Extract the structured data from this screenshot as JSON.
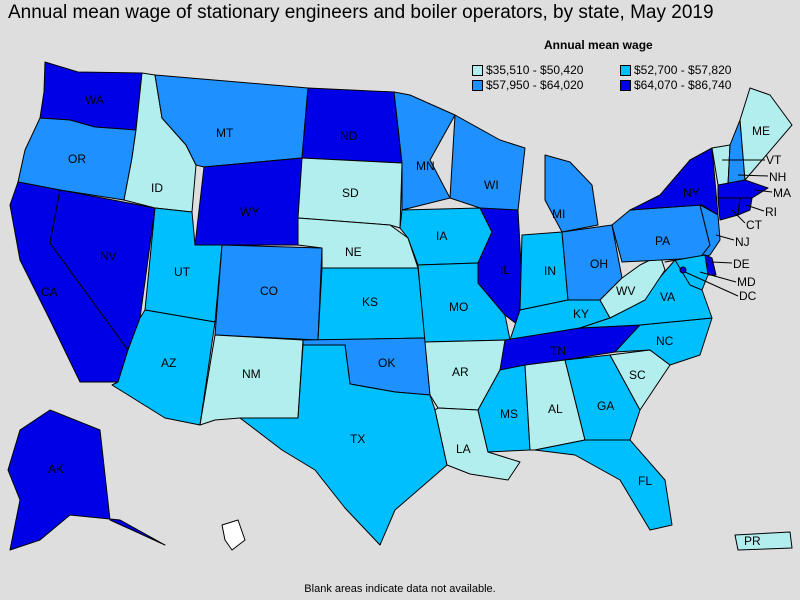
{
  "title": "Annual mean wage of stationary engineers and boiler operators, by state, May 2019",
  "legend": {
    "title": "Annual mean wage",
    "items": [
      {
        "label": "$35,510 - $50,420",
        "color": "#b3eeee"
      },
      {
        "label": "$52,700 - $57,820",
        "color": "#00bfff"
      },
      {
        "label": "$57,950 - $64,020",
        "color": "#1e90ff"
      },
      {
        "label": "$64,070 - $86,740",
        "color": "#0000e6"
      }
    ]
  },
  "colors": {
    "tier1": "#b3eeee",
    "tier2": "#00bfff",
    "tier3": "#1e90ff",
    "tier4": "#0000e6",
    "no_data": "#ffffff",
    "background": "#dedede"
  },
  "states": [
    {
      "abbr": "WA",
      "tier": 4
    },
    {
      "abbr": "OR",
      "tier": 3
    },
    {
      "abbr": "CA",
      "tier": 4
    },
    {
      "abbr": "NV",
      "tier": 4
    },
    {
      "abbr": "ID",
      "tier": 1
    },
    {
      "abbr": "MT",
      "tier": 3
    },
    {
      "abbr": "WY",
      "tier": 4
    },
    {
      "abbr": "UT",
      "tier": 2
    },
    {
      "abbr": "AZ",
      "tier": 2
    },
    {
      "abbr": "CO",
      "tier": 3
    },
    {
      "abbr": "NM",
      "tier": 1
    },
    {
      "abbr": "ND",
      "tier": 4
    },
    {
      "abbr": "SD",
      "tier": 1
    },
    {
      "abbr": "NE",
      "tier": 1
    },
    {
      "abbr": "KS",
      "tier": 2
    },
    {
      "abbr": "OK",
      "tier": 3
    },
    {
      "abbr": "TX",
      "tier": 2
    },
    {
      "abbr": "MN",
      "tier": 3
    },
    {
      "abbr": "IA",
      "tier": 2
    },
    {
      "abbr": "MO",
      "tier": 2
    },
    {
      "abbr": "AR",
      "tier": 1
    },
    {
      "abbr": "LA",
      "tier": 1
    },
    {
      "abbr": "WI",
      "tier": 3
    },
    {
      "abbr": "IL",
      "tier": 4
    },
    {
      "abbr": "MI",
      "tier": 3
    },
    {
      "abbr": "IN",
      "tier": 2
    },
    {
      "abbr": "OH",
      "tier": 3
    },
    {
      "abbr": "KY",
      "tier": 2
    },
    {
      "abbr": "TN",
      "tier": 4
    },
    {
      "abbr": "MS",
      "tier": 2
    },
    {
      "abbr": "AL",
      "tier": 1
    },
    {
      "abbr": "GA",
      "tier": 2
    },
    {
      "abbr": "FL",
      "tier": 2
    },
    {
      "abbr": "SC",
      "tier": 1
    },
    {
      "abbr": "NC",
      "tier": 2
    },
    {
      "abbr": "VA",
      "tier": 2
    },
    {
      "abbr": "WV",
      "tier": 1
    },
    {
      "abbr": "PA",
      "tier": 3
    },
    {
      "abbr": "NY",
      "tier": 4
    },
    {
      "abbr": "VT",
      "tier": 1
    },
    {
      "abbr": "NH",
      "tier": 3
    },
    {
      "abbr": "ME",
      "tier": 1
    },
    {
      "abbr": "MA",
      "tier": 4
    },
    {
      "abbr": "RI",
      "tier": 4
    },
    {
      "abbr": "CT",
      "tier": 4
    },
    {
      "abbr": "NJ",
      "tier": 3
    },
    {
      "abbr": "DE",
      "tier": 4
    },
    {
      "abbr": "MD",
      "tier": 2
    },
    {
      "abbr": "DC",
      "tier": 4
    },
    {
      "abbr": "AK",
      "tier": 4
    },
    {
      "abbr": "HI",
      "tier": 0
    },
    {
      "abbr": "PR",
      "tier": 1
    }
  ],
  "footer": "Blank areas indicate data not available."
}
